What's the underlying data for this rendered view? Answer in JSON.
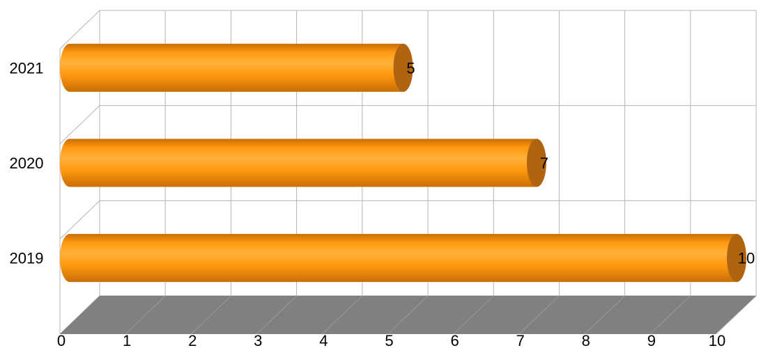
{
  "chart_data": {
    "type": "bar",
    "orientation": "horizontal",
    "style": "3d-cylinder",
    "title": "",
    "xlabel": "",
    "ylabel": "",
    "categories": [
      "2021",
      "2020",
      "2019"
    ],
    "values": [
      5,
      7,
      10
    ],
    "xlim": [
      0,
      10
    ],
    "x_ticks": [
      "0",
      "1",
      "2",
      "3",
      "4",
      "5",
      "6",
      "7",
      "8",
      "9",
      "10"
    ],
    "grid": true,
    "legend": "none",
    "data_labels": true,
    "colors": {
      "bar": "#ff9910",
      "bar_light": "#ffc35a",
      "bar_dark": "#c96e05",
      "bar_cap": "#b06410",
      "floor": "#808080",
      "grid": "#b5b5b5"
    }
  }
}
